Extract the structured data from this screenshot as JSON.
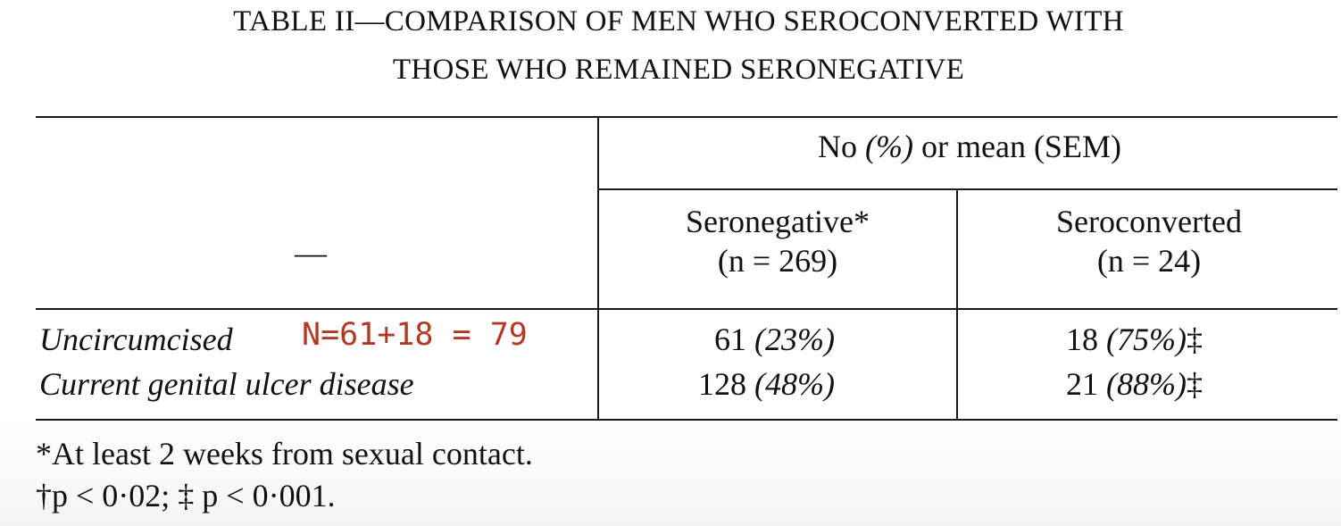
{
  "title": {
    "line1": "TABLE II—COMPARISON OF MEN WHO SEROCONVERTED WITH",
    "line2": "THOSE WHO REMAINED SERONEGATIVE"
  },
  "header": {
    "group_prefix": "No ",
    "group_pct": "(%)",
    "group_suffix": " or mean (SEM)",
    "stub": "—",
    "col1_name": "Seronegative*",
    "col1_n": "(n = 269)",
    "col2_name": "Seroconverted",
    "col2_n": "(n = 24)"
  },
  "rows": [
    {
      "label": "Uncircumcised",
      "col1_value": "61",
      "col1_pct": "(23%)",
      "col2_value": "18",
      "col2_pct": "(75%)",
      "col2_mark": "‡"
    },
    {
      "label": "Current genital ulcer disease",
      "col1_value": "128",
      "col1_pct": "(48%)",
      "col2_value": "21",
      "col2_pct": "(88%)",
      "col2_mark": "‡"
    }
  ],
  "annotation": "N=61+18 = 79",
  "footnotes": [
    "*At least 2 weeks from sexual contact.",
    "†p < 0·02; ‡ p < 0·001."
  ],
  "colors": {
    "annotation": "#b23a25",
    "text": "#111111"
  }
}
